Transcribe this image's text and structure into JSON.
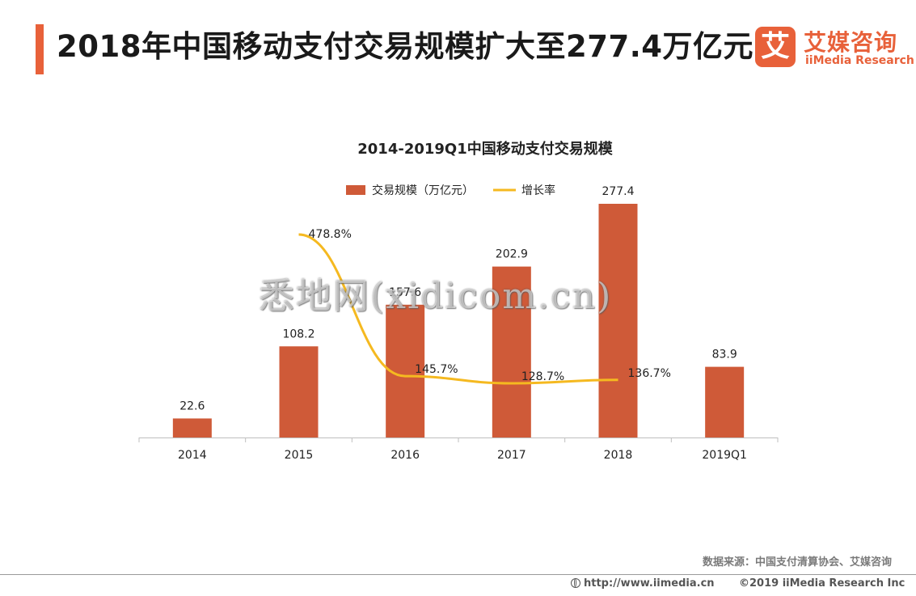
{
  "header": {
    "title": "2018年中国移动支付交易规模扩大至277.4万亿元"
  },
  "logo": {
    "mark": "艾",
    "name_cn": "艾媒咨询",
    "name_en": "iiMedia Research"
  },
  "chart_data": {
    "type": "bar",
    "title": "2014-2019Q1中国移动支付交易规模",
    "categories": [
      "2014",
      "2015",
      "2016",
      "2017",
      "2018",
      "2019Q1"
    ],
    "series": [
      {
        "name": "交易规模（万亿元）",
        "type": "bar",
        "values": [
          22.6,
          108.2,
          157.6,
          202.9,
          277.4,
          83.9
        ],
        "labels": [
          "22.6",
          "108.2",
          "157.6",
          "202.9",
          "277.4",
          "83.9"
        ]
      },
      {
        "name": "增长率",
        "type": "line",
        "values": [
          null,
          478.8,
          145.7,
          128.7,
          136.7,
          null
        ],
        "labels": [
          "",
          "478.8%",
          "145.7%",
          "128.7%",
          "136.7%",
          ""
        ]
      }
    ],
    "legend_position": "top-center",
    "grid": false,
    "colors": {
      "bar": "#cf5a38",
      "line": "#f5b920"
    }
  },
  "source": "数据来源：中国支付清算协会、艾媒咨询",
  "watermark": "悉地网(xidicom.cn)",
  "footer": {
    "url": "http://www.iimedia.cn",
    "copyright": "©2019  iiMedia Research  Inc"
  },
  "accent_color": "#e8613a"
}
